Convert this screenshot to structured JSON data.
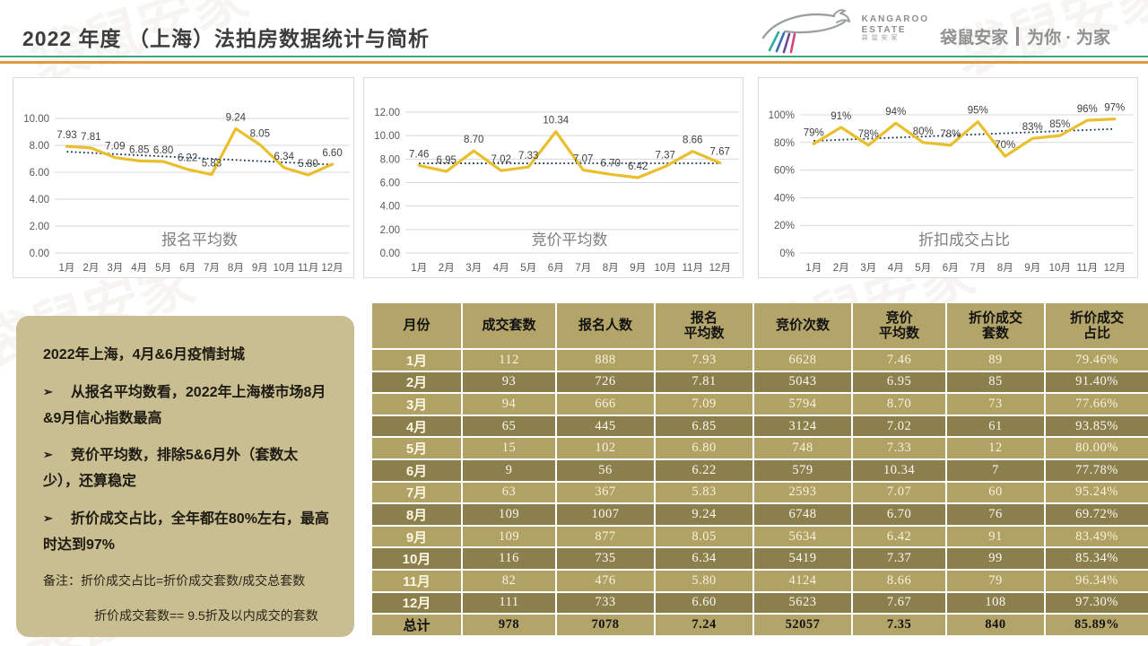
{
  "header": {
    "title": "2022 年度 （上海）法拍房数据统计与简析",
    "logo": {
      "brand_line1": "KANGAROO",
      "brand_line2": "ESTATE",
      "brand_sub": "袋 鼠 安 家",
      "tagline_left": "袋鼠安家",
      "tagline_right": "为你 · 为家"
    }
  },
  "watermark": {
    "text": "袋鼠安家"
  },
  "chart_data": [
    {
      "type": "line",
      "title": "报名平均数",
      "categories": [
        "1月",
        "2月",
        "3月",
        "4月",
        "5月",
        "6月",
        "7月",
        "8月",
        "9月",
        "10月",
        "11月",
        "12月"
      ],
      "values": [
        7.93,
        7.81,
        7.09,
        6.85,
        6.8,
        6.22,
        5.83,
        9.24,
        8.05,
        6.34,
        5.8,
        6.6
      ],
      "xlabel": "",
      "ylabel": "",
      "ylim": [
        0,
        10
      ],
      "ytick": 2,
      "value_format": "2dp",
      "grid": "horizontal",
      "legend": "none",
      "trendline": "linear-dotted"
    },
    {
      "type": "line",
      "title": "竞价平均数",
      "categories": [
        "1月",
        "2月",
        "3月",
        "4月",
        "5月",
        "6月",
        "7月",
        "8月",
        "9月",
        "10月",
        "11月",
        "12月"
      ],
      "values": [
        7.46,
        6.95,
        8.7,
        7.02,
        7.33,
        10.34,
        7.07,
        6.7,
        6.42,
        7.37,
        8.66,
        7.67
      ],
      "xlabel": "",
      "ylabel": "",
      "ylim": [
        0,
        12
      ],
      "ytick": 2,
      "value_format": "2dp",
      "grid": "horizontal",
      "legend": "none",
      "trendline": "linear-dotted"
    },
    {
      "type": "line",
      "title": "折扣成交占比",
      "categories": [
        "1月",
        "2月",
        "3月",
        "4月",
        "5月",
        "6月",
        "7月",
        "8月",
        "9月",
        "10月",
        "11月",
        "12月"
      ],
      "values": [
        79,
        91,
        78,
        94,
        80,
        78,
        95,
        70,
        83,
        85,
        96,
        97
      ],
      "xlabel": "",
      "ylabel": "",
      "ylim": [
        0,
        100
      ],
      "ytick": 20,
      "value_format": "pct",
      "grid": "horizontal",
      "legend": "none",
      "trendline": "linear-dotted"
    }
  ],
  "insights": {
    "bullet_char": "➢",
    "lines": [
      {
        "bullet": false,
        "text": "2022年上海，4月&6月疫情封城"
      },
      {
        "bullet": true,
        "text": "从报名平均数看，2022年上海楼市场8月&9月信心指数最高"
      },
      {
        "bullet": true,
        "text": "竞价平均数，排除5&6月外（套数太少），还算稳定"
      },
      {
        "bullet": true,
        "text": "折价成交占比，全年都在80%左右，最高时达到97%"
      }
    ],
    "notes": [
      {
        "indent": false,
        "text": "备注：折价成交占比=折价成交套数/成交总套数"
      },
      {
        "indent": true,
        "text": "折价成交套数== 9.5折及以内成交的套数"
      }
    ]
  },
  "table": {
    "headers": [
      "月份",
      "成交套数",
      "报名人数",
      "报名\n平均数",
      "竞价次数",
      "竞价\n平均数",
      "折价成交\n套数",
      "折价成交\n占比"
    ],
    "rows": [
      [
        "1月",
        "112",
        "888",
        "7.93",
        "6628",
        "7.46",
        "89",
        "79.46%"
      ],
      [
        "2月",
        "93",
        "726",
        "7.81",
        "5043",
        "6.95",
        "85",
        "91.40%"
      ],
      [
        "3月",
        "94",
        "666",
        "7.09",
        "5794",
        "8.70",
        "73",
        "77.66%"
      ],
      [
        "4月",
        "65",
        "445",
        "6.85",
        "3124",
        "7.02",
        "61",
        "93.85%"
      ],
      [
        "5月",
        "15",
        "102",
        "6.80",
        "748",
        "7.33",
        "12",
        "80.00%"
      ],
      [
        "6月",
        "9",
        "56",
        "6.22",
        "579",
        "10.34",
        "7",
        "77.78%"
      ],
      [
        "7月",
        "63",
        "367",
        "5.83",
        "2593",
        "7.07",
        "60",
        "95.24%"
      ],
      [
        "8月",
        "109",
        "1007",
        "9.24",
        "6748",
        "6.70",
        "76",
        "69.72%"
      ],
      [
        "9月",
        "109",
        "877",
        "8.05",
        "5634",
        "6.42",
        "91",
        "83.49%"
      ],
      [
        "10月",
        "116",
        "735",
        "6.34",
        "5419",
        "7.37",
        "99",
        "85.34%"
      ],
      [
        "11月",
        "82",
        "476",
        "5.80",
        "4124",
        "8.66",
        "79",
        "96.34%"
      ],
      [
        "12月",
        "111",
        "733",
        "6.60",
        "5623",
        "7.67",
        "108",
        "97.30%"
      ]
    ],
    "total": [
      "总计",
      "978",
      "7078",
      "7.24",
      "52057",
      "7.35",
      "840",
      "85.89%"
    ]
  },
  "colors": {
    "series_line": "#e9bf2e",
    "trend_line": "#17375e",
    "rule_green": "#3aa87c",
    "rule_orange": "#dd9a3e",
    "table_header_bg": "#b3a469",
    "row_light_bg": "#b0a164",
    "row_dark_bg": "#8c7f4e",
    "insight_bg": "#c9bd92"
  }
}
